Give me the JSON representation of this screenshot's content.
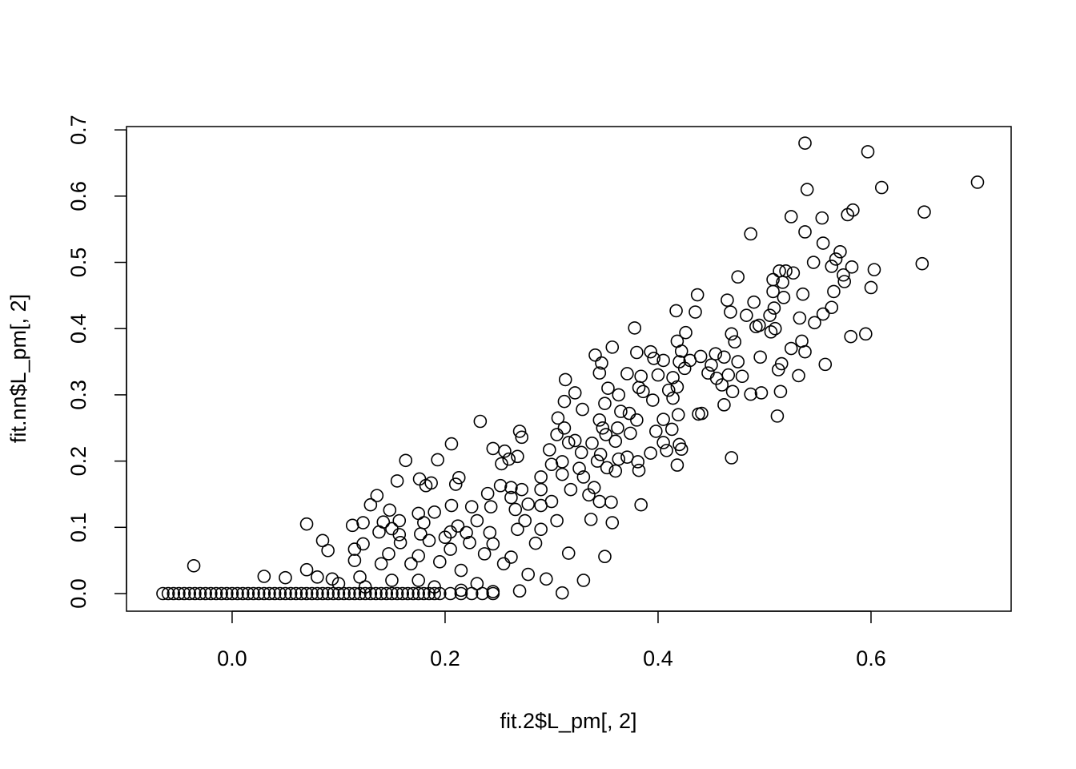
{
  "chart_data": {
    "type": "scatter",
    "x_label": "fit.2$L_pm[, 2]",
    "y_label": "fit.nn$L_pm[, 2]",
    "xlim": [
      -0.0992,
      0.7316
    ],
    "ylim": [
      -0.0266,
      0.705
    ],
    "xticks": [
      {
        "value": 0,
        "label": "0.0"
      },
      0.2,
      0.4,
      0.6
    ],
    "yticks": [
      {
        "value": 0,
        "label": "0.0"
      },
      0.1,
      0.2,
      0.3,
      0.4,
      0.5,
      0.6,
      0.7
    ],
    "color": "#000000",
    "x": [
      0.538,
      0.597,
      0.7,
      0.61,
      0.54,
      0.65,
      0.583,
      0.578,
      0.525,
      0.554,
      0.487,
      0.538,
      0.555,
      0.571,
      0.567,
      0.546,
      0.648,
      0.582,
      0.603,
      0.563,
      0.574,
      0.514,
      0.52,
      0.527,
      0.508,
      0.475,
      0.575,
      0.6,
      0.517,
      0.565,
      0.536,
      0.508,
      0.437,
      0.465,
      0.49,
      0.518,
      0.533,
      0.547,
      0.563,
      0.555,
      0.509,
      0.492,
      0.505,
      0.495,
      0.468,
      0.483,
      0.417,
      0.435,
      0.469,
      0.51,
      0.535,
      0.581,
      0.595,
      0.426,
      0.472,
      0.378,
      0.506,
      0.525,
      0.538,
      0.418,
      0.341,
      0.357,
      0.38,
      0.393,
      0.422,
      0.44,
      0.454,
      0.462,
      0.475,
      0.496,
      0.516,
      0.557,
      0.347,
      0.396,
      0.405,
      0.42,
      0.43,
      0.45,
      0.345,
      0.371,
      0.384,
      0.4,
      0.414,
      0.425,
      0.447,
      0.455,
      0.466,
      0.479,
      0.513,
      0.532,
      0.313,
      0.353,
      0.382,
      0.41,
      0.418,
      0.46,
      0.47,
      0.487,
      0.497,
      0.515,
      0.322,
      0.312,
      0.35,
      0.363,
      0.386,
      0.395,
      0.414,
      0.462,
      0.512,
      0.329,
      0.365,
      0.373,
      0.38,
      0.405,
      0.419,
      0.438,
      0.441,
      0.345,
      0.233,
      0.306,
      0.312,
      0.348,
      0.362,
      0.398,
      0.413,
      0.27,
      0.272,
      0.305,
      0.351,
      0.374,
      0.405,
      0.42,
      0.469,
      0.206,
      0.316,
      0.322,
      0.338,
      0.36,
      0.393,
      0.408,
      0.422,
      0.245,
      0.256,
      0.298,
      0.328,
      0.346,
      0.363,
      0.371,
      0.381,
      0.418,
      0.163,
      0.193,
      0.26,
      0.268,
      0.3,
      0.31,
      0.326,
      0.343,
      0.36,
      0.382,
      0.253,
      0.176,
      0.213,
      0.29,
      0.31,
      0.33,
      0.352,
      0.187,
      0.182,
      0.21,
      0.155,
      0.252,
      0.262,
      0.272,
      0.29,
      0.318,
      0.335,
      0.34,
      0.136,
      0.24,
      0.262,
      0.278,
      0.3,
      0.345,
      0.356,
      0.384,
      0.13,
      0.148,
      0.175,
      0.206,
      0.225,
      0.243,
      0.266,
      0.29,
      0.19,
      0.142,
      0.123,
      0.113,
      0.157,
      0.18,
      0.212,
      0.23,
      0.275,
      0.305,
      0.337,
      0.357,
      0.07,
      0.138,
      0.157,
      0.177,
      0.205,
      0.22,
      0.242,
      0.268,
      0.29,
      0.15,
      0.085,
      0.123,
      0.158,
      0.185,
      0.2,
      0.223,
      0.245,
      0.285,
      0.09,
      0.115,
      0.147,
      0.175,
      0.205,
      0.237,
      0.262,
      0.316,
      0.35,
      0.115,
      0.14,
      0.168,
      0.195,
      0.215,
      0.255,
      0.278,
      0.295,
      0.33,
      -0.036,
      0.07,
      0.03,
      0.05,
      0.08,
      0.094,
      0.12,
      0.15,
      0.175,
      0.23,
      0.27,
      0.31,
      0.1,
      0.125,
      0.19,
      0.215,
      0.245,
      -0.065,
      -0.055,
      -0.045,
      -0.035,
      -0.025,
      -0.015,
      -0.005,
      0.005,
      0.015,
      0.025,
      0.035,
      0.045,
      0.055,
      0.065,
      0.075,
      0.085,
      0.095,
      0.105,
      0.115,
      0.125,
      0.135,
      0.145,
      0.155,
      0.165,
      0.175,
      0.185,
      0.195,
      0.205,
      0.215,
      0.225,
      0.235,
      0.245,
      -0.06,
      -0.05,
      -0.04,
      -0.03,
      -0.02,
      -0.01,
      0,
      0.01,
      0.02,
      0.03,
      0.04,
      0.05,
      0.06,
      0.07,
      0.08,
      0.09,
      0.1,
      0.11,
      0.12,
      0.13,
      0.14,
      0.15,
      0.16,
      0.17,
      0.18,
      0.19
    ],
    "y": [
      0.68,
      0.667,
      0.621,
      0.613,
      0.61,
      0.576,
      0.579,
      0.572,
      0.569,
      0.567,
      0.543,
      0.546,
      0.529,
      0.516,
      0.505,
      0.5,
      0.498,
      0.493,
      0.489,
      0.494,
      0.481,
      0.487,
      0.487,
      0.484,
      0.474,
      0.478,
      0.471,
      0.462,
      0.47,
      0.456,
      0.452,
      0.456,
      0.451,
      0.443,
      0.44,
      0.447,
      0.416,
      0.409,
      0.432,
      0.422,
      0.431,
      0.403,
      0.42,
      0.405,
      0.425,
      0.42,
      0.427,
      0.425,
      0.392,
      0.4,
      0.381,
      0.388,
      0.392,
      0.394,
      0.38,
      0.401,
      0.395,
      0.37,
      0.365,
      0.381,
      0.36,
      0.372,
      0.364,
      0.365,
      0.366,
      0.358,
      0.362,
      0.357,
      0.35,
      0.357,
      0.347,
      0.346,
      0.348,
      0.355,
      0.352,
      0.35,
      0.352,
      0.345,
      0.333,
      0.332,
      0.328,
      0.33,
      0.326,
      0.34,
      0.333,
      0.325,
      0.33,
      0.328,
      0.338,
      0.329,
      0.323,
      0.31,
      0.311,
      0.307,
      0.312,
      0.315,
      0.305,
      0.301,
      0.303,
      0.305,
      0.303,
      0.29,
      0.287,
      0.3,
      0.305,
      0.292,
      0.295,
      0.285,
      0.268,
      0.278,
      0.275,
      0.272,
      0.262,
      0.263,
      0.27,
      0.271,
      0.272,
      0.262,
      0.26,
      0.265,
      0.25,
      0.25,
      0.25,
      0.245,
      0.248,
      0.245,
      0.236,
      0.24,
      0.24,
      0.242,
      0.228,
      0.225,
      0.205,
      0.226,
      0.228,
      0.231,
      0.227,
      0.23,
      0.212,
      0.216,
      0.218,
      0.219,
      0.215,
      0.217,
      0.213,
      0.21,
      0.203,
      0.206,
      0.199,
      0.194,
      0.201,
      0.202,
      0.203,
      0.207,
      0.195,
      0.199,
      0.189,
      0.2,
      0.185,
      0.186,
      0.196,
      0.173,
      0.175,
      0.176,
      0.18,
      0.176,
      0.19,
      0.167,
      0.163,
      0.165,
      0.17,
      0.163,
      0.16,
      0.157,
      0.157,
      0.157,
      0.149,
      0.16,
      0.148,
      0.151,
      0.145,
      0.135,
      0.139,
      0.139,
      0.138,
      0.134,
      0.134,
      0.126,
      0.121,
      0.133,
      0.131,
      0.131,
      0.127,
      0.133,
      0.123,
      0.108,
      0.107,
      0.103,
      0.11,
      0.107,
      0.102,
      0.11,
      0.11,
      0.11,
      0.112,
      0.107,
      0.105,
      0.093,
      0.089,
      0.09,
      0.093,
      0.092,
      0.092,
      0.097,
      0.097,
      0.098,
      0.08,
      0.075,
      0.077,
      0.08,
      0.085,
      0.077,
      0.075,
      0.076,
      0.065,
      0.067,
      0.06,
      0.057,
      0.067,
      0.06,
      0.055,
      0.061,
      0.056,
      0.05,
      0.045,
      0.045,
      0.048,
      0.035,
      0.045,
      0.029,
      0.022,
      0.02,
      0.042,
      0.036,
      0.026,
      0.024,
      0.025,
      0.022,
      0.025,
      0.02,
      0.02,
      0.015,
      0.004,
      0.001,
      0.015,
      0.01,
      0.01,
      0.005,
      0.003,
      0,
      0,
      0,
      0,
      0,
      0,
      0,
      0,
      0,
      0,
      0,
      0,
      0,
      0,
      0,
      0,
      0,
      0,
      0,
      0,
      0,
      0,
      0,
      0,
      0,
      0,
      0,
      0,
      0,
      0,
      0,
      0,
      0,
      0,
      0,
      0,
      0,
      0,
      0,
      0,
      0,
      0,
      0,
      0,
      0,
      0,
      0,
      0,
      0,
      0,
      0,
      0,
      0,
      0,
      0,
      0,
      0,
      0
    ]
  }
}
